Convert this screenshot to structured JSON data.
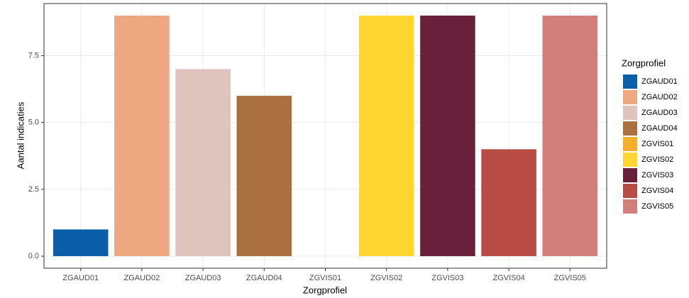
{
  "chart_data": {
    "type": "bar",
    "categories": [
      "ZGAUD01",
      "ZGAUD02",
      "ZGAUD03",
      "ZGAUD04",
      "ZGVIS01",
      "ZGVIS02",
      "ZGVIS03",
      "ZGVIS04",
      "ZGVIS05"
    ],
    "values": [
      1,
      9,
      7,
      6,
      0,
      9,
      9,
      4,
      9
    ],
    "colors": [
      "#0b5fa8",
      "#eda882",
      "#dfc4bd",
      "#aa7040",
      "#f4ae2e",
      "#fdd632",
      "#69213b",
      "#b84c45",
      "#d27e7a"
    ],
    "ylim": [
      -0.45,
      9.45
    ],
    "yticks": [
      {
        "value": 0,
        "label": "0.0"
      },
      {
        "value": 2.5,
        "label": "2.5"
      },
      {
        "value": 5,
        "label": "5.0"
      },
      {
        "value": 7.5,
        "label": "7.5"
      }
    ],
    "x_label": "Zorgprofiel",
    "y_label": "Aantal indicaties",
    "legend_title": "Zorgprofiel",
    "legend_position": "right",
    "grid": true
  }
}
